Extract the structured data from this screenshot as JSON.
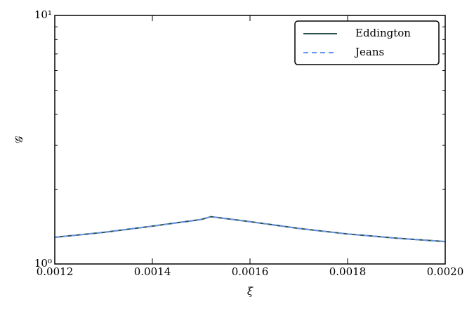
{
  "chart_data": {
    "type": "line",
    "xlabel": "ξ",
    "ylabel": "𝒢",
    "x": [
      0.0012,
      0.0013,
      0.0014,
      0.0015,
      0.00152,
      0.0016,
      0.0017,
      0.0018,
      0.0019,
      0.002
    ],
    "series": [
      {
        "name": "Eddington",
        "color": "#2f4f4f",
        "dash": false,
        "values": [
          1.28,
          1.34,
          1.42,
          1.51,
          1.55,
          1.48,
          1.39,
          1.32,
          1.27,
          1.23
        ]
      },
      {
        "name": "Jeans",
        "color": "#6495ed",
        "dash": true,
        "values": [
          1.28,
          1.34,
          1.42,
          1.51,
          1.55,
          1.48,
          1.39,
          1.32,
          1.27,
          1.23
        ]
      }
    ],
    "xlim": [
      0.0012,
      0.002
    ],
    "xticks": [
      0.0012,
      0.0014,
      0.0016,
      0.0018,
      {
        "value": 0.002,
        "label": "0.0020"
      }
    ],
    "ylim": [
      1,
      10
    ],
    "yticks": [
      {
        "value": 1,
        "label": "10⁰"
      },
      {
        "value": 10,
        "label": "10¹"
      }
    ],
    "yminor_ticks": [
      2,
      3,
      4,
      5,
      6,
      7,
      8,
      9
    ],
    "ylog": true,
    "grid": false,
    "legend": "upper right"
  }
}
